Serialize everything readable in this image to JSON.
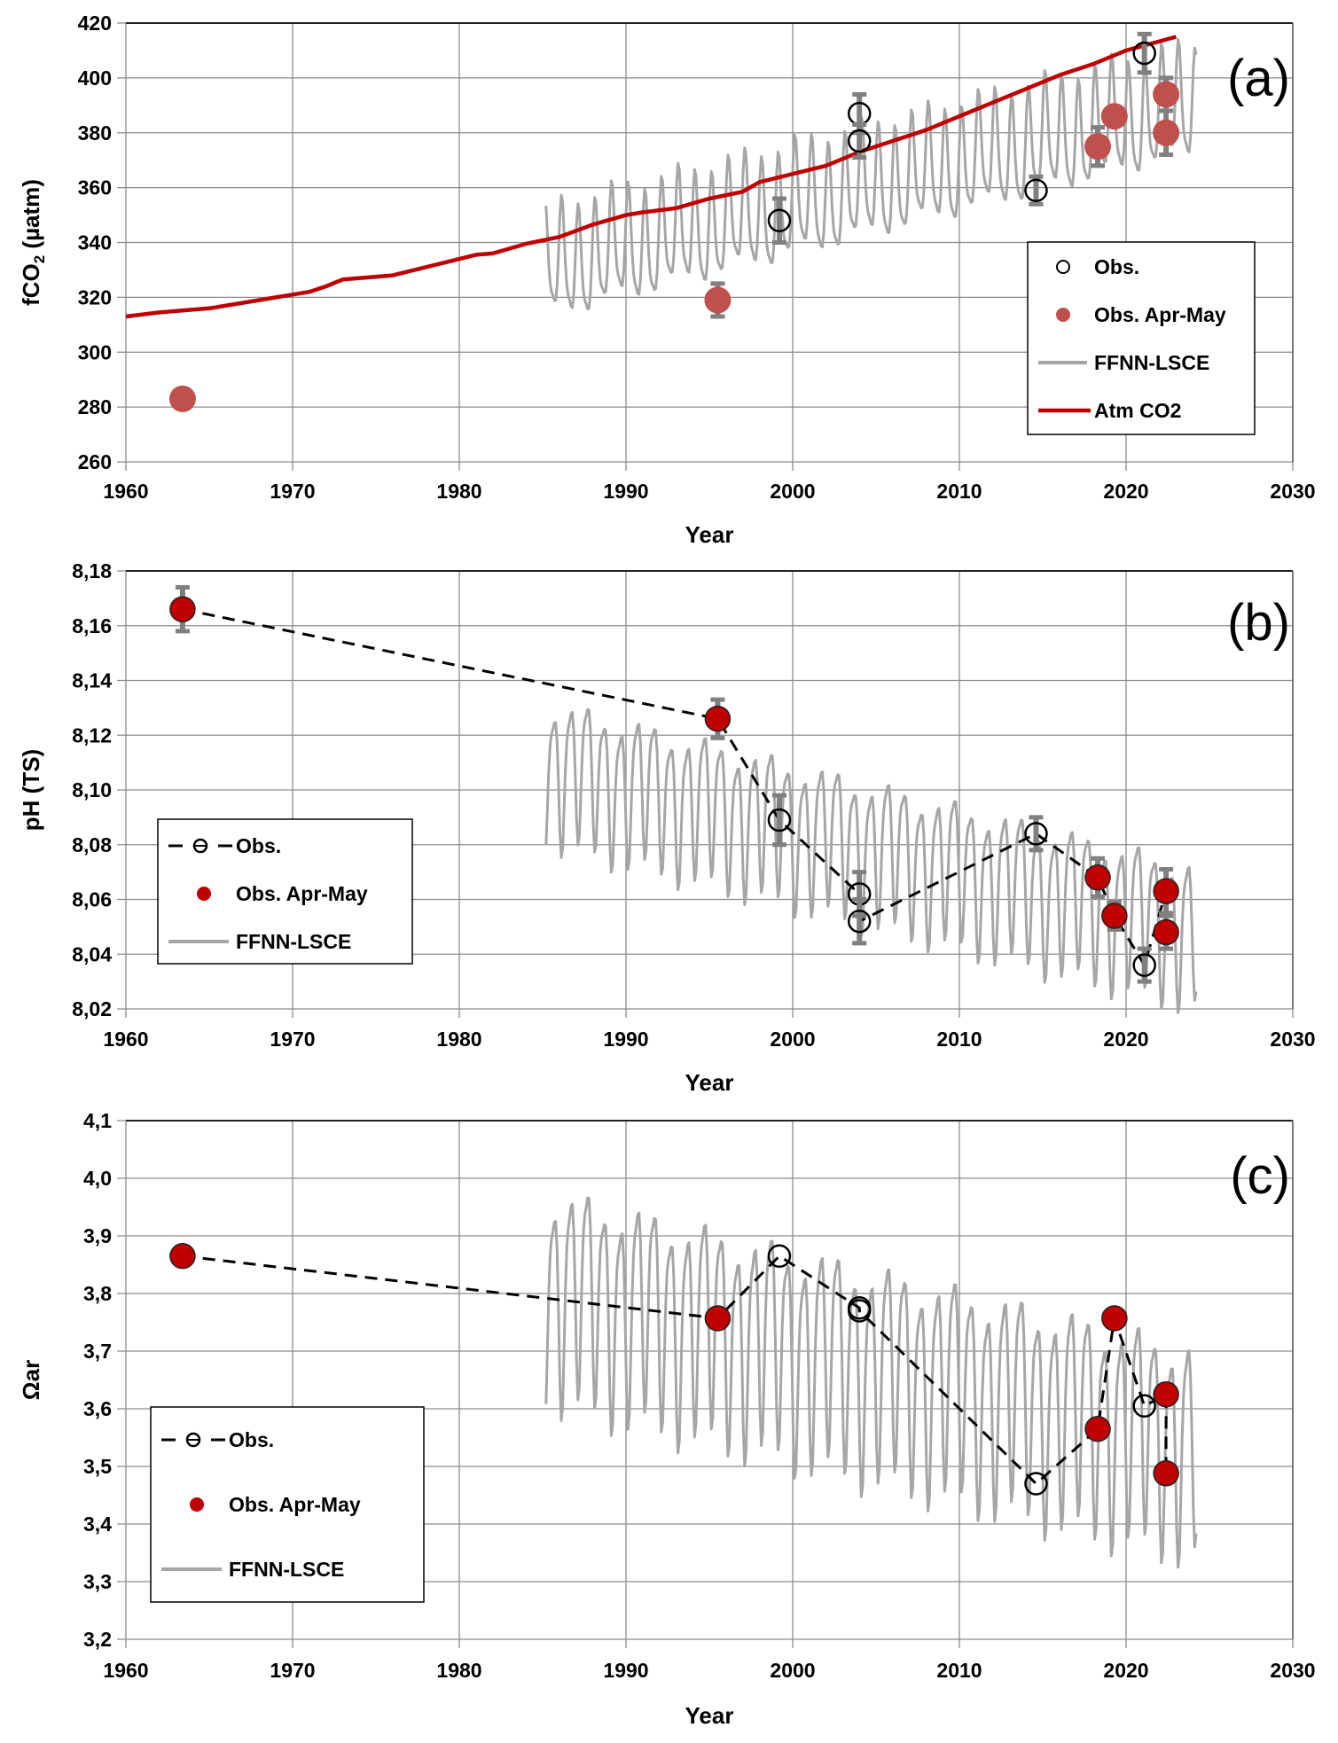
{
  "figure": {
    "colors": {
      "obs_marker": "#000000",
      "apr_may_a": "#c0504d",
      "apr_may_bc": "#c00000",
      "ffnn": "#a6a6a6",
      "atm_co2": "#c00000",
      "error_bar": "#808080",
      "grid": "#8c8c8c",
      "dash": "#000000"
    }
  },
  "chart_data": [
    {
      "id": "a",
      "type": "line",
      "panel_label": "(a)",
      "title": "",
      "xlabel": "Year",
      "ylabel": "fCO2 (µatm)",
      "ylabel_main": "fCO",
      "ylabel_sub": "2",
      "ylabel_unit": " (µatm)",
      "xlim": [
        1960,
        2030
      ],
      "ylim": [
        260,
        420
      ],
      "xticks": [
        1960,
        1970,
        1980,
        1990,
        2000,
        2010,
        2020,
        2030
      ],
      "yticks": [
        260,
        280,
        300,
        320,
        340,
        360,
        380,
        400,
        420
      ],
      "ytick_labels": [
        "260",
        "280",
        "300",
        "320",
        "340",
        "360",
        "380",
        "400",
        "420"
      ],
      "grid": true,
      "legend_placement": "right",
      "legend": [
        {
          "key": "obs",
          "label": "Obs.",
          "symbol": "open-circle"
        },
        {
          "key": "apr_may",
          "label": "Obs. Apr-May",
          "symbol": "filled-circle"
        },
        {
          "key": "ffnn",
          "label": "FFNN-LSCE",
          "symbol": "grey-line"
        },
        {
          "key": "atm",
          "label": "Atm CO2",
          "symbol": "red-line"
        }
      ],
      "series": {
        "obs": {
          "name": "Obs.",
          "connect": false,
          "points": [
            [
              1999.2,
              348,
              8
            ],
            [
              2004.0,
              387,
              7
            ],
            [
              2004.0,
              377,
              6
            ],
            [
              2014.6,
              359,
              5
            ],
            [
              2021.1,
              409,
              7
            ]
          ]
        },
        "apr_may": {
          "name": "Obs. Apr-May",
          "points": [
            [
              1963.4,
              283,
              0
            ],
            [
              1995.5,
              319,
              6
            ],
            [
              2018.3,
              375,
              7
            ],
            [
              2019.3,
              386,
              0
            ],
            [
              2022.4,
              394,
              6
            ],
            [
              2022.4,
              380,
              8
            ]
          ]
        },
        "atm": {
          "name": "Atm CO2",
          "points": [
            [
              1960,
              313
            ],
            [
              1962,
              314.5
            ],
            [
              1965,
              316
            ],
            [
              1967,
              318
            ],
            [
              1969,
              320
            ],
            [
              1970,
              321
            ],
            [
              1971,
              322
            ],
            [
              1972,
              324
            ],
            [
              1973,
              326.5
            ],
            [
              1976,
              328
            ],
            [
              1978,
              331
            ],
            [
              1980,
              334
            ],
            [
              1981,
              335.5
            ],
            [
              1982,
              336
            ],
            [
              1984,
              339.5
            ],
            [
              1986,
              342
            ],
            [
              1988,
              346.5
            ],
            [
              1990,
              350
            ],
            [
              1991,
              351
            ],
            [
              1993,
              352.5
            ],
            [
              1995,
              356
            ],
            [
              1997,
              358.5
            ],
            [
              1998,
              362
            ],
            [
              2000,
              365
            ],
            [
              2002,
              368
            ],
            [
              2004,
              373
            ],
            [
              2006,
              377
            ],
            [
              2008,
              381
            ],
            [
              2010,
              386
            ],
            [
              2012,
              391
            ],
            [
              2014,
              396
            ],
            [
              2016,
              401
            ],
            [
              2018,
              405
            ],
            [
              2020,
              410
            ],
            [
              2023,
              415
            ]
          ]
        },
        "ffnn": {
          "name": "FFNN-LSCE",
          "start": 1985.2,
          "end": 2024.2,
          "trend_start": 330,
          "trend_end": 390,
          "amplitude": 21
        }
      }
    },
    {
      "id": "b",
      "type": "line",
      "panel_label": "(b)",
      "title": "",
      "xlabel": "Year",
      "ylabel": "pH (TS)",
      "xlim": [
        1960,
        2030
      ],
      "ylim": [
        8.02,
        8.18
      ],
      "xticks": [
        1960,
        1970,
        1980,
        1990,
        2000,
        2010,
        2020,
        2030
      ],
      "yticks": [
        8.02,
        8.04,
        8.06,
        8.08,
        8.1,
        8.12,
        8.14,
        8.16,
        8.18
      ],
      "ytick_labels": [
        "8,02",
        "8,04",
        "8,06",
        "8,08",
        "8,10",
        "8,12",
        "8,14",
        "8,16",
        "8,18"
      ],
      "grid": true,
      "legend_placement": "left",
      "legend": [
        {
          "key": "obs",
          "label": "Obs.",
          "symbol": "dashed-open-circle"
        },
        {
          "key": "apr_may",
          "label": "Obs. Apr-May",
          "symbol": "filled-circle"
        },
        {
          "key": "ffnn",
          "label": "FFNN-LSCE",
          "symbol": "grey-line"
        }
      ],
      "series": {
        "obs": {
          "name": "Obs.",
          "connect": true,
          "points": [
            [
              1963.4,
              8.166,
              0.008
            ],
            [
              1995.5,
              8.126,
              0.007
            ],
            [
              1999.2,
              8.089,
              0.009
            ],
            [
              2004.0,
              8.062,
              0.008
            ],
            [
              2004.0,
              8.052,
              0.008
            ],
            [
              2014.6,
              8.084,
              0.006
            ],
            [
              2018.3,
              8.068,
              0.007
            ],
            [
              2019.3,
              8.054,
              0.005
            ],
            [
              2021.1,
              8.036,
              0.006
            ],
            [
              2022.4,
              8.063,
              0.008
            ],
            [
              2022.4,
              8.048,
              0.006
            ]
          ]
        },
        "apr_may": {
          "name": "Obs. Apr-May",
          "points": [
            [
              1963.4,
              8.166,
              0.008
            ],
            [
              1995.5,
              8.126,
              0.007
            ],
            [
              2018.3,
              8.068,
              0.007
            ],
            [
              2019.3,
              8.054,
              0.005
            ],
            [
              2022.4,
              8.063,
              0.008
            ],
            [
              2022.4,
              8.048,
              0.006
            ]
          ]
        },
        "ffnn": {
          "name": "FFNN-LSCE",
          "start": 1985.2,
          "end": 2024.2,
          "trend_start": 8.11,
          "trend_end": 8.05,
          "amplitude": 0.027
        }
      }
    },
    {
      "id": "c",
      "type": "line",
      "panel_label": "(c)",
      "title": "",
      "xlabel": "Year",
      "ylabel": "Ωar",
      "xlim": [
        1960,
        2030
      ],
      "ylim": [
        3.2,
        4.1
      ],
      "xticks": [
        1960,
        1970,
        1980,
        1990,
        2000,
        2010,
        2020,
        2030
      ],
      "yticks": [
        3.2,
        3.3,
        3.4,
        3.5,
        3.6,
        3.7,
        3.8,
        3.9,
        4.0,
        4.1
      ],
      "ytick_labels": [
        "3,2",
        "3,3",
        "3,4",
        "3,5",
        "3,6",
        "3,7",
        "3,8",
        "3,9",
        "4,0",
        "4,1"
      ],
      "grid": true,
      "legend_placement": "left",
      "legend": [
        {
          "key": "obs",
          "label": "Obs.",
          "symbol": "dashed-open-circle"
        },
        {
          "key": "apr_may",
          "label": "Obs. Apr-May",
          "symbol": "filled-circle"
        },
        {
          "key": "ffnn",
          "label": "FFNN-LSCE",
          "symbol": "grey-line"
        }
      ],
      "series": {
        "obs": {
          "name": "Obs.",
          "connect": true,
          "points": [
            [
              1963.4,
              3.865,
              0
            ],
            [
              1995.5,
              3.757,
              0
            ],
            [
              1999.2,
              3.865,
              0
            ],
            [
              2004.0,
              3.775,
              0
            ],
            [
              2004.0,
              3.77,
              0
            ],
            [
              2014.6,
              3.47,
              0
            ],
            [
              2018.3,
              3.565,
              0
            ],
            [
              2019.3,
              3.757,
              0
            ],
            [
              2021.1,
              3.605,
              0
            ],
            [
              2022.4,
              3.625,
              0
            ],
            [
              2022.4,
              3.488,
              0
            ]
          ]
        },
        "apr_may": {
          "name": "Obs. Apr-May",
          "points": [
            [
              1963.4,
              3.865,
              0
            ],
            [
              1995.5,
              3.757,
              0
            ],
            [
              2018.3,
              3.565,
              0
            ],
            [
              2019.3,
              3.757,
              0
            ],
            [
              2022.4,
              3.625,
              0
            ],
            [
              2022.4,
              3.488,
              0
            ]
          ]
        },
        "ffnn": {
          "name": "FFNN-LSCE",
          "start": 1985.2,
          "end": 2024.2,
          "trend_start": 3.82,
          "trend_end": 3.55,
          "amplitude": 0.19
        }
      }
    }
  ]
}
